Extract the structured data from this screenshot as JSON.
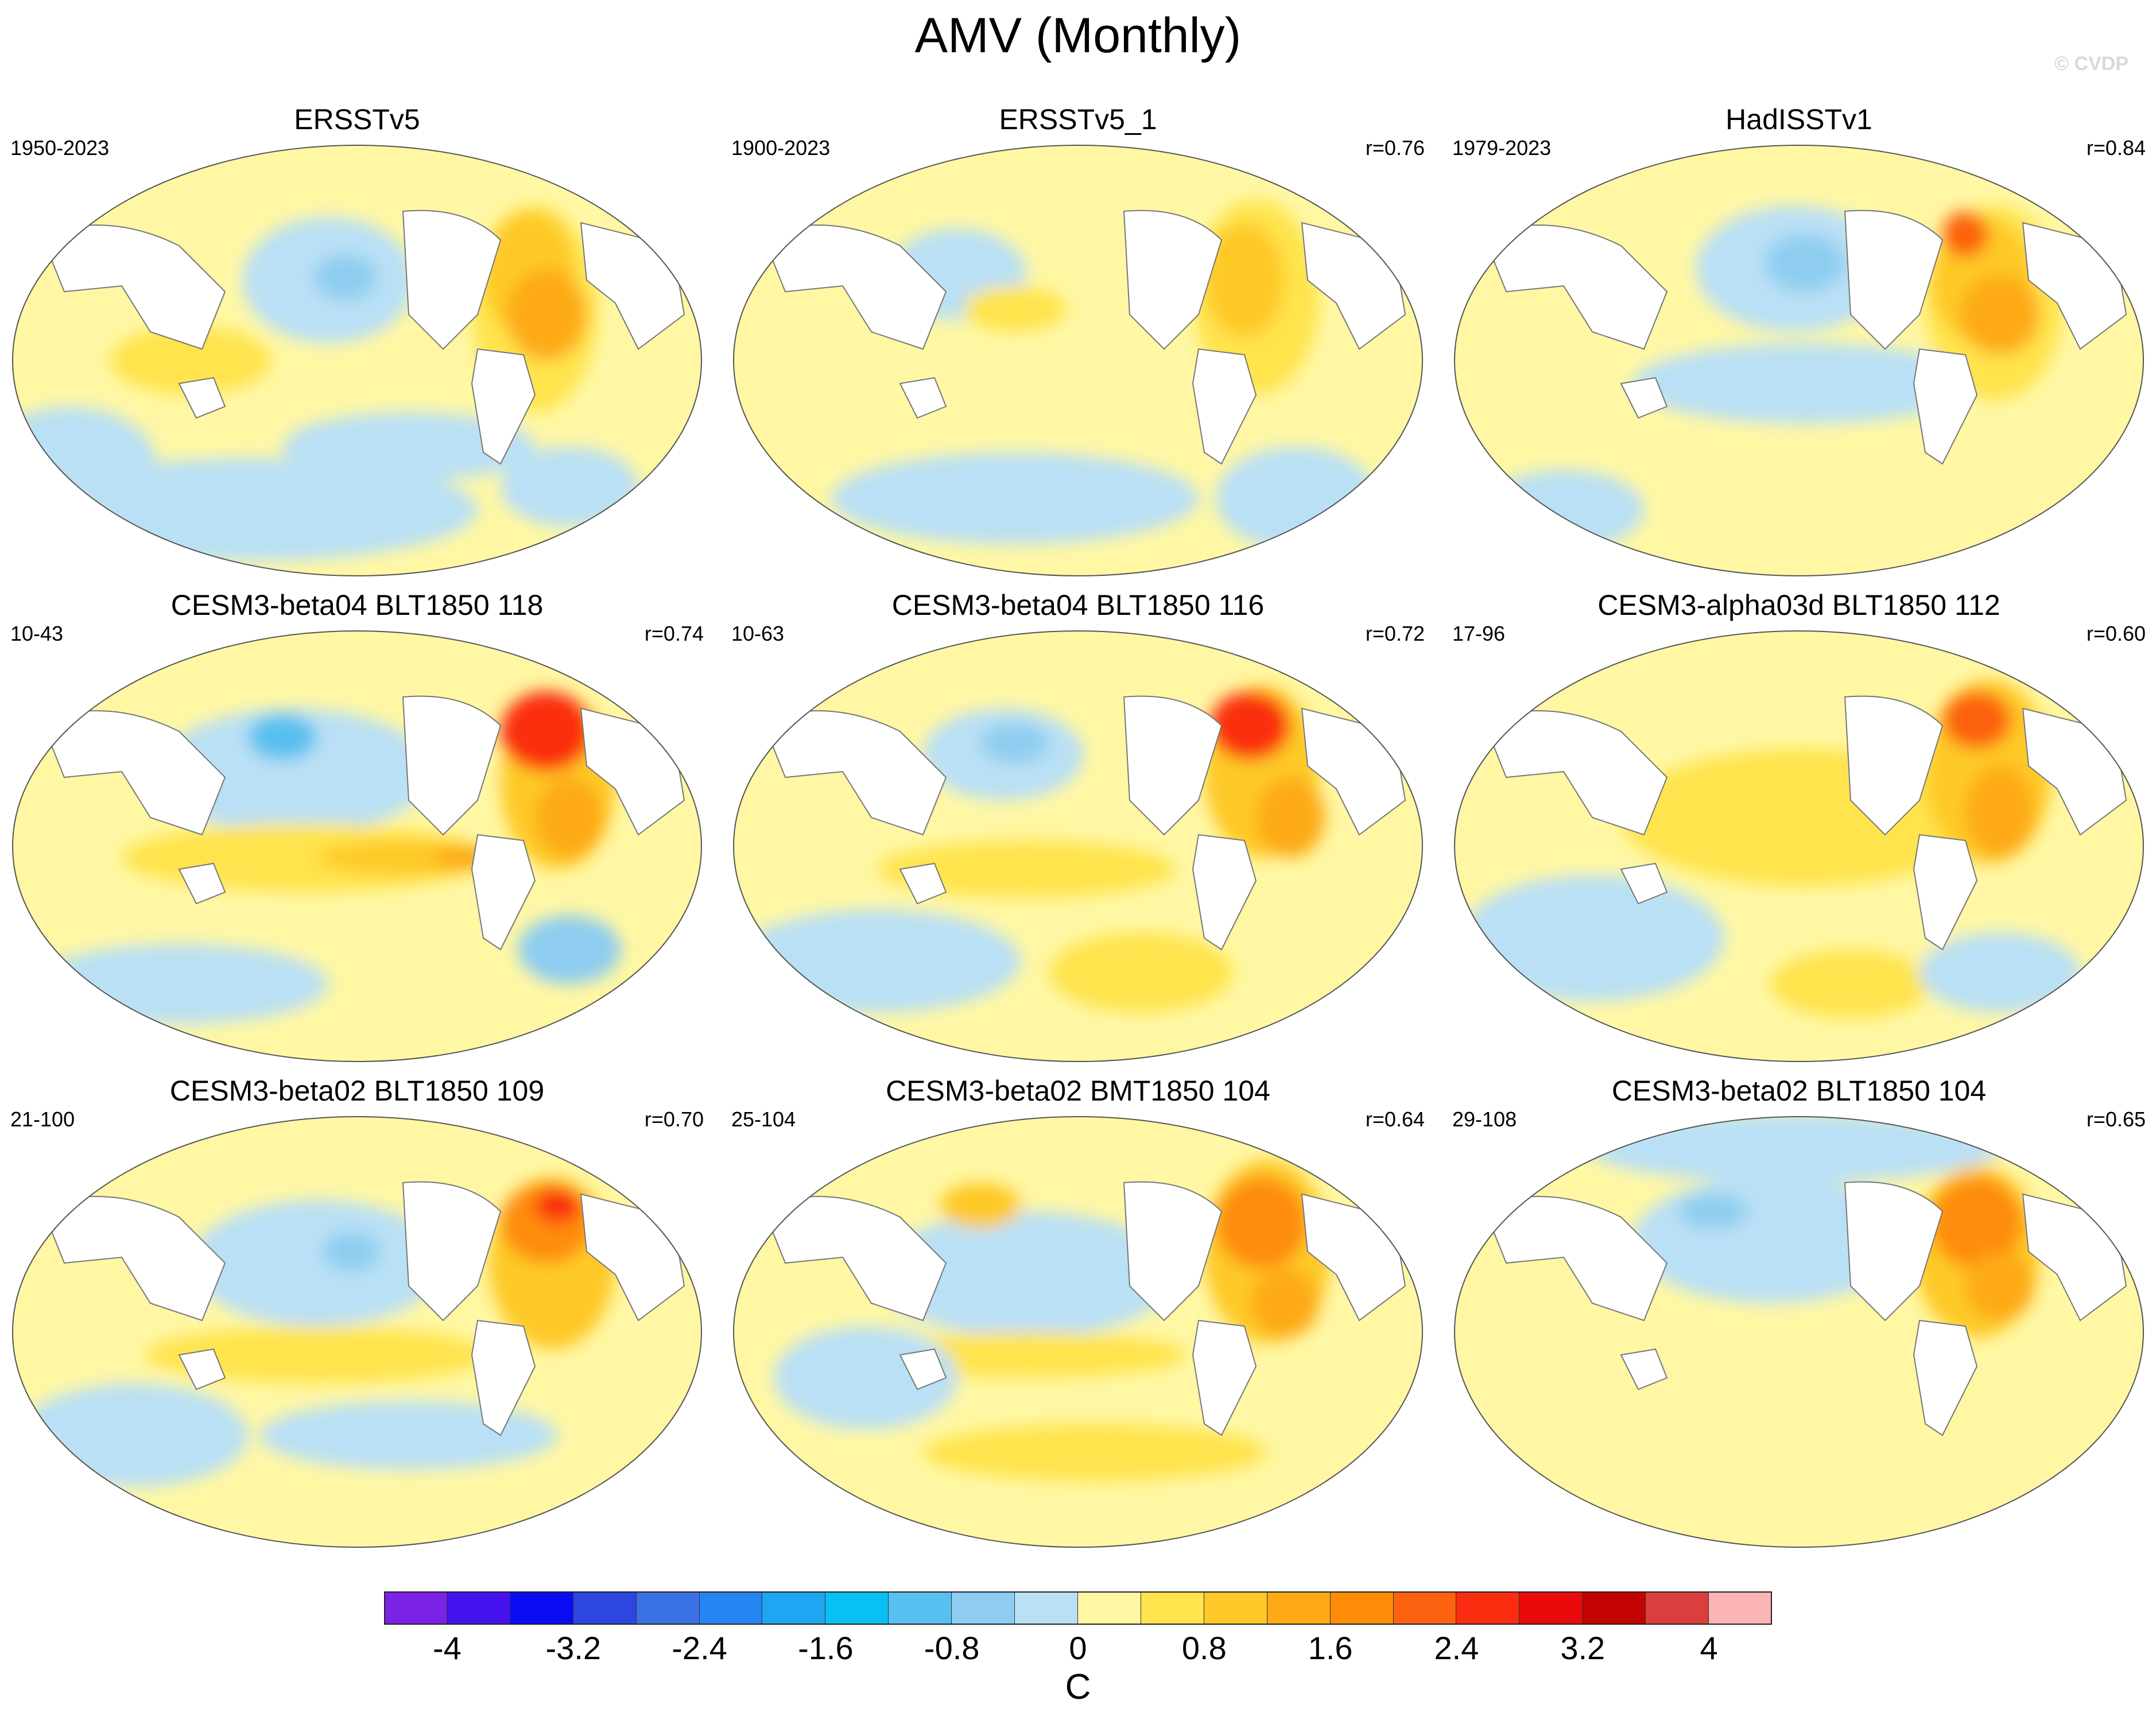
{
  "title": "AMV (Monthly)",
  "watermark": "© CVDP",
  "panels": [
    {
      "title": "ERSSTv5",
      "period": "1950-2023",
      "corr": ""
    },
    {
      "title": "ERSSTv5_1",
      "period": "1900-2023",
      "corr": "r=0.76"
    },
    {
      "title": "HadISSTv1",
      "period": "1979-2023",
      "corr": "r=0.84"
    },
    {
      "title": "CESM3-beta04 BLT1850 118",
      "period": "10-43",
      "corr": "r=0.74"
    },
    {
      "title": "CESM3-beta04 BLT1850 116",
      "period": "10-63",
      "corr": "r=0.72"
    },
    {
      "title": "CESM3-alpha03d BLT1850 112",
      "period": "17-96",
      "corr": "r=0.60"
    },
    {
      "title": "CESM3-beta02 BLT1850 109",
      "period": "21-100",
      "corr": "r=0.70"
    },
    {
      "title": "CESM3-beta02 BMT1850 104",
      "period": "25-104",
      "corr": "r=0.64"
    },
    {
      "title": "CESM3-beta02 BLT1850 104",
      "period": "29-108",
      "corr": "r=0.65"
    }
  ],
  "colorbar": {
    "unit": "C",
    "tick_labels": [
      "-4",
      "-3.2",
      "-2.4",
      "-1.6",
      "-0.8",
      "0",
      "0.8",
      "1.6",
      "2.4",
      "3.2",
      "4"
    ],
    "colors": [
      "#7b22e6",
      "#4312ef",
      "#0a0cf2",
      "#2e46e0",
      "#3a72e6",
      "#2585f0",
      "#1ea6f2",
      "#08c0f4",
      "#58c0f0",
      "#8ecdf0",
      "#b9e0f5",
      "#fff7a4",
      "#ffe44d",
      "#fec928",
      "#fdaa16",
      "#fe8c08",
      "#fc6210",
      "#fb2d10",
      "#e90b0b",
      "#c40202",
      "#dc3d3d",
      "#fbb5b5"
    ]
  }
}
